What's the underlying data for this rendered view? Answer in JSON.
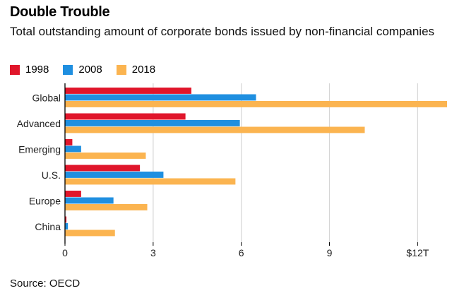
{
  "title": "Double Trouble",
  "subtitle": "Total outstanding amount of corporate bonds issued by non-financial companies",
  "source": "Source: OECD",
  "chart_data": {
    "type": "bar",
    "orientation": "horizontal",
    "categories": [
      "Global",
      "Advanced",
      "Emerging",
      "U.S.",
      "Europe",
      "China"
    ],
    "series": [
      {
        "name": "1998",
        "color": "#e0162b",
        "values": [
          4.3,
          4.1,
          0.25,
          2.55,
          0.55,
          0.05
        ]
      },
      {
        "name": "2008",
        "color": "#1f8fe0",
        "values": [
          6.5,
          5.95,
          0.55,
          3.35,
          1.65,
          0.1
        ]
      },
      {
        "name": "2018",
        "color": "#fbb450",
        "values": [
          13.0,
          10.2,
          2.75,
          5.8,
          2.8,
          1.7
        ]
      }
    ],
    "xlim": [
      0,
      13.0
    ],
    "xticks": [
      0,
      3,
      6,
      9,
      12
    ],
    "xtick_labels": [
      "0",
      "3",
      "6",
      "9",
      "$12T"
    ],
    "grid": true,
    "legend_position": "top-left"
  }
}
